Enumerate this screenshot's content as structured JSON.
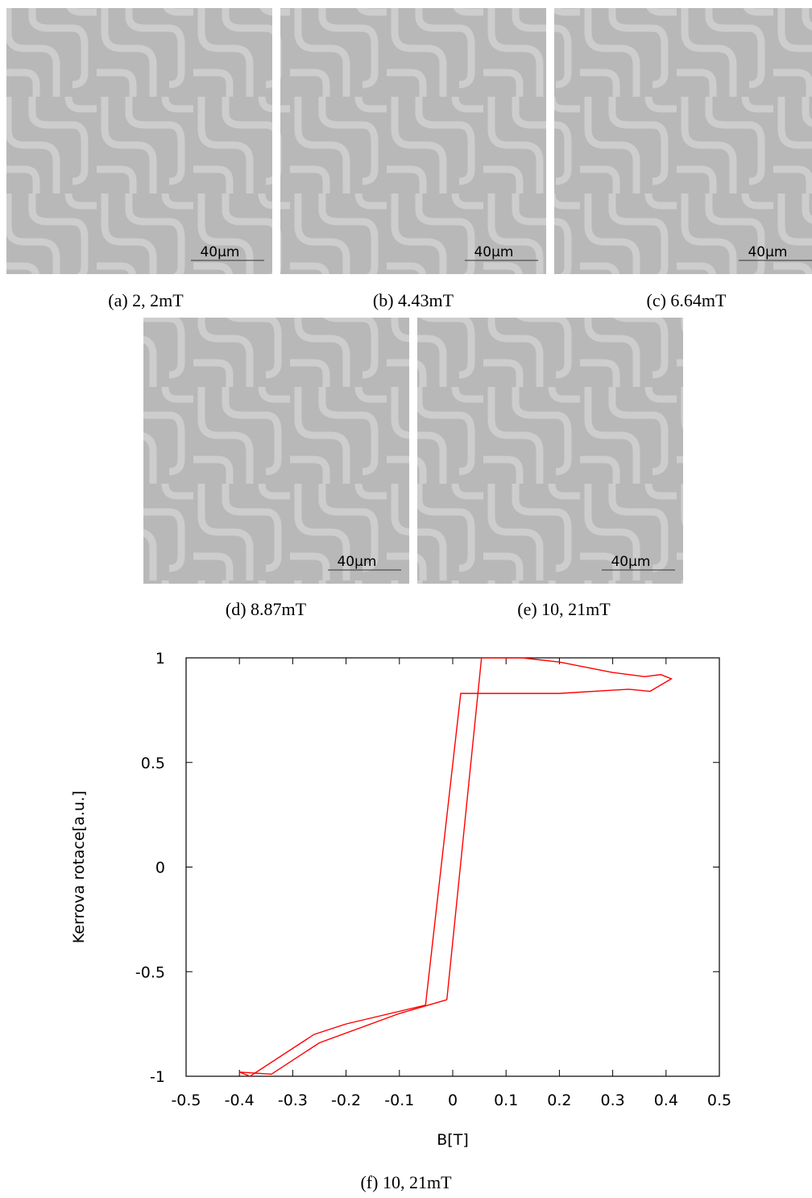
{
  "panels": [
    {
      "scale_label": "40µm",
      "caption": "(a) 2, 2mT"
    },
    {
      "scale_label": "40µm",
      "caption": "(b) 4.43mT"
    },
    {
      "scale_label": "40µm",
      "caption": "(c) 6.64mT"
    },
    {
      "scale_label": "40µm",
      "caption": "(d) 8.87mT"
    },
    {
      "scale_label": "40µm",
      "caption": "(e) 10, 21mT"
    }
  ],
  "chart_data": {
    "type": "line",
    "caption": "(f) 10, 21mT",
    "x_label": "B[T]",
    "y_label": "Kerrova rotace[a.u.]",
    "xlim": [
      -0.5,
      0.5
    ],
    "ylim": [
      -1,
      1
    ],
    "xticks": [
      -0.5,
      -0.4,
      -0.3,
      -0.2,
      -0.1,
      0,
      0.1,
      0.2,
      0.3,
      0.4,
      0.5
    ],
    "yticks": [
      -1,
      -0.5,
      0,
      0.5,
      1
    ],
    "series": [
      {
        "color": "#ff0000",
        "x": [
          -0.011,
          0.054,
          0.13,
          0.2,
          0.3,
          0.36,
          0.39,
          0.41,
          0.37,
          0.33,
          0.2,
          0.015,
          -0.051,
          -0.2,
          -0.26,
          -0.38,
          -0.4,
          -0.34,
          -0.25,
          -0.1,
          -0.011
        ],
        "values": [
          -0.634,
          1.0,
          1.0,
          0.98,
          0.93,
          0.91,
          0.92,
          0.9,
          0.84,
          0.85,
          0.83,
          0.83,
          -0.66,
          -0.75,
          -0.8,
          -1.0,
          -0.98,
          -0.99,
          -0.84,
          -0.7,
          -0.634
        ]
      }
    ]
  }
}
